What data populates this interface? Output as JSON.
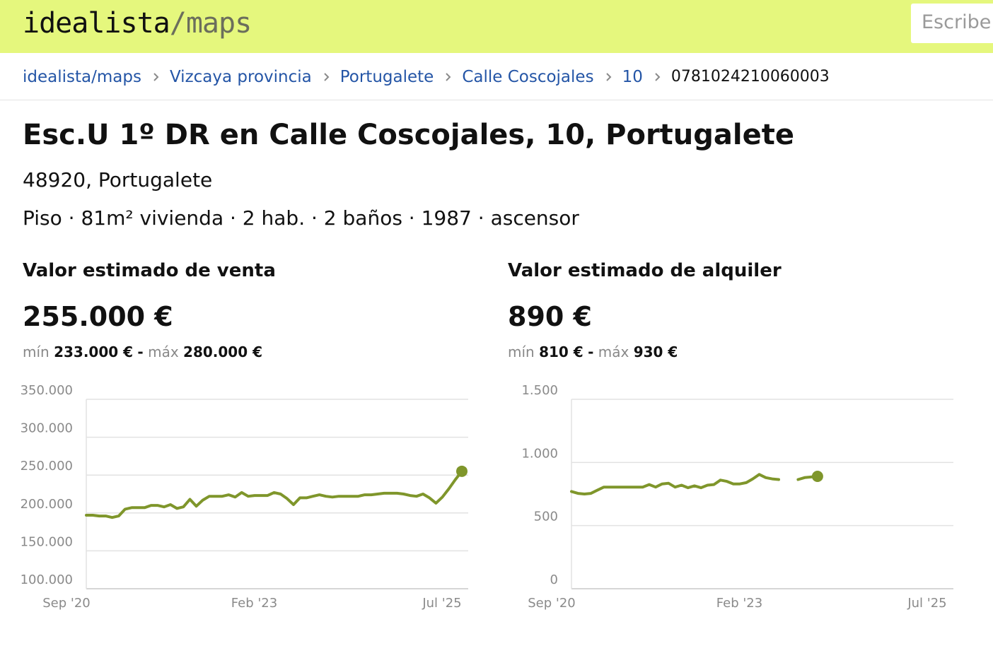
{
  "header": {
    "logo": {
      "brand": "idealista",
      "suffix": "/maps"
    },
    "search_placeholder": "Escribe"
  },
  "breadcrumbs": {
    "links": [
      "idealista/maps",
      "Vizcaya provincia",
      "Portugalete",
      "Calle Coscojales",
      "10"
    ],
    "current": "0781024210060003"
  },
  "property": {
    "title": "Esc.U 1º DR en Calle Coscojales, 10, Portugalete",
    "address": "48920, Portugalete",
    "specs": "Piso · 81m² vivienda · 2 hab. · 2 baños · 1987 · ascensor"
  },
  "chart_data": [
    {
      "type": "line",
      "title": "Valor estimado de venta",
      "headline": "255.000 €",
      "range": {
        "min_label": "mín",
        "min": "233.000 €",
        "separator": "-",
        "max_label": "máx",
        "max": "280.000 €"
      },
      "color": "#7f962b",
      "grid": true,
      "categories": [
        "Sep '20",
        null,
        null,
        null,
        null,
        null,
        null,
        null,
        null,
        null,
        null,
        null,
        null,
        null,
        null,
        null,
        null,
        null,
        null,
        null,
        null,
        null,
        null,
        null,
        null,
        null,
        null,
        null,
        null,
        "Feb '23",
        null,
        null,
        null,
        null,
        null,
        null,
        null,
        null,
        null,
        null,
        null,
        null,
        null,
        null,
        null,
        null,
        null,
        null,
        null,
        null,
        null,
        null,
        null,
        null,
        null,
        null,
        null,
        null,
        "Jul '25"
      ],
      "values": [
        197000,
        197000,
        196000,
        196000,
        194000,
        196000,
        205000,
        207000,
        207000,
        207000,
        210000,
        210000,
        208000,
        211000,
        206000,
        208000,
        218000,
        209000,
        217000,
        222000,
        222000,
        222000,
        224000,
        221000,
        227000,
        222000,
        223000,
        223000,
        223000,
        227000,
        225000,
        219000,
        211000,
        220000,
        220000,
        222000,
        224000,
        222000,
        221000,
        222000,
        222000,
        222000,
        222000,
        224000,
        224000,
        225000,
        226000,
        226000,
        226000,
        225000,
        223000,
        222000,
        225000,
        220000,
        213000,
        221000,
        232000,
        244000,
        255000
      ],
      "ylim": [
        100000,
        350000
      ],
      "yticks": [
        {
          "value": 100000,
          "label": "100.000"
        },
        {
          "value": 150000,
          "label": "150.000"
        },
        {
          "value": 200000,
          "label": "200.000"
        },
        {
          "value": 250000,
          "label": "250.000"
        },
        {
          "value": 300000,
          "label": "300.000"
        },
        {
          "value": 350000,
          "label": "350.000"
        }
      ]
    },
    {
      "type": "line",
      "title": "Valor estimado de alquiler",
      "headline": "890 €",
      "range": {
        "min_label": "mín",
        "min": "810 €",
        "separator": "-",
        "max_label": "máx",
        "max": "930 €"
      },
      "color": "#7f962b",
      "grid": true,
      "categories": [
        "Sep '20",
        null,
        null,
        null,
        null,
        null,
        null,
        null,
        null,
        null,
        null,
        null,
        null,
        null,
        null,
        null,
        null,
        null,
        null,
        null,
        null,
        null,
        null,
        null,
        null,
        null,
        null,
        null,
        null,
        "Feb '23",
        null,
        null,
        null,
        null,
        null,
        null,
        null,
        null,
        null,
        null,
        null,
        null,
        null,
        null,
        null,
        null,
        null,
        null,
        null,
        null,
        null,
        null,
        null,
        null,
        null,
        null,
        null,
        null,
        "Jul '25"
      ],
      "values": [
        770,
        755,
        750,
        755,
        780,
        805,
        805,
        805,
        805,
        805,
        805,
        805,
        825,
        805,
        830,
        835,
        805,
        820,
        800,
        815,
        800,
        820,
        825,
        860,
        850,
        830,
        830,
        840,
        870,
        905,
        880,
        870,
        865,
        null,
        null,
        865,
        880,
        885,
        890,
        null,
        null,
        null,
        null,
        null,
        null,
        null,
        null,
        null,
        null,
        null,
        null,
        null,
        null,
        null,
        null,
        null,
        null,
        null,
        null
      ],
      "ylim": [
        0,
        1500
      ],
      "yticks": [
        0,
        500,
        {
          "value": 1000,
          "label": "1.000"
        },
        {
          "value": 1500,
          "label": "1.500"
        }
      ]
    }
  ]
}
